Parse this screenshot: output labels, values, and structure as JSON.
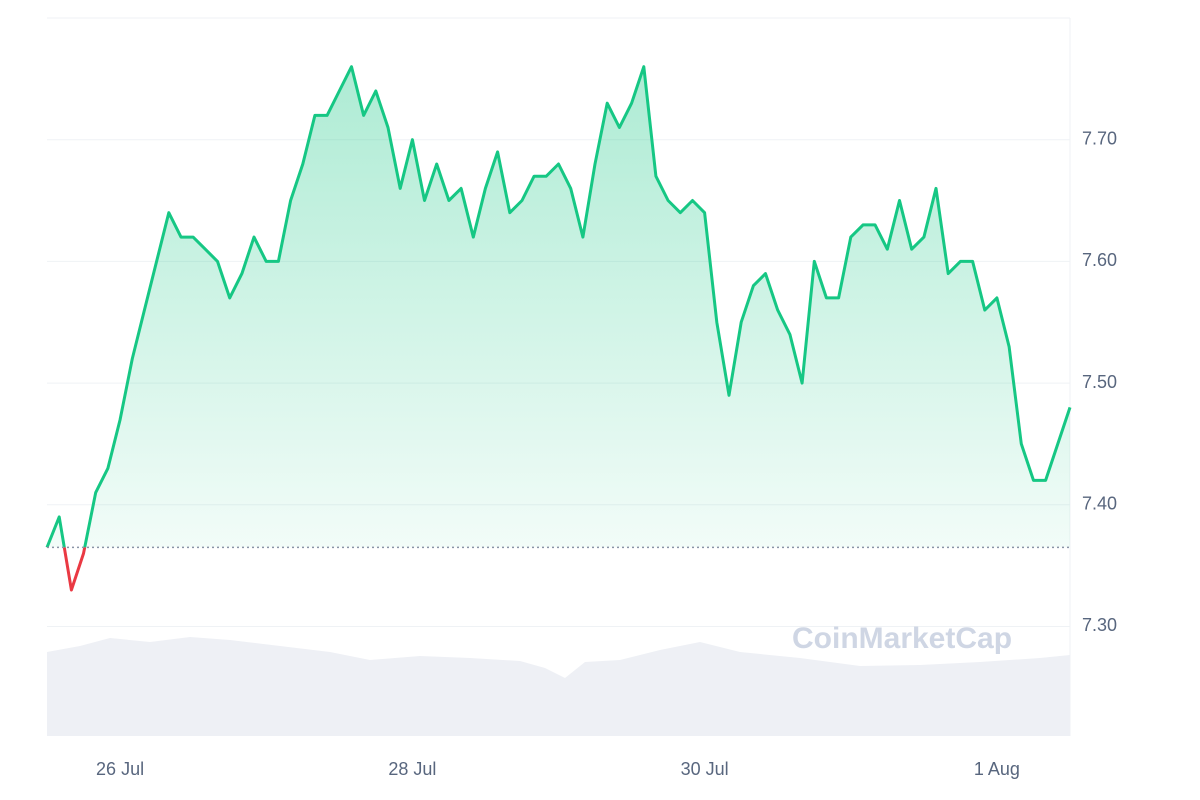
{
  "chart_data": {
    "type": "line",
    "watermark": "CoinMarketCap",
    "categories": [
      null,
      null,
      null,
      null,
      null,
      null,
      "26 Jul",
      null,
      null,
      null,
      null,
      null,
      null,
      null,
      null,
      null,
      null,
      null,
      null,
      null,
      null,
      null,
      null,
      null,
      null,
      null,
      null,
      null,
      null,
      null,
      "28 Jul",
      null,
      null,
      null,
      null,
      null,
      null,
      null,
      null,
      null,
      null,
      null,
      null,
      null,
      null,
      null,
      null,
      null,
      null,
      null,
      null,
      null,
      null,
      null,
      "30 Jul",
      null,
      null,
      null,
      null,
      null,
      null,
      null,
      null,
      null,
      null,
      null,
      null,
      null,
      null,
      null,
      null,
      null,
      null,
      null,
      null,
      null,
      null,
      null,
      "1 Aug",
      null,
      null,
      null,
      null,
      null,
      null
    ],
    "series": [
      {
        "color": "#16c784",
        "down_color": "#ea3943",
        "values": [
          7.365,
          7.39,
          7.33,
          7.36,
          7.41,
          7.43,
          7.47,
          7.52,
          7.56,
          7.6,
          7.64,
          7.62,
          7.62,
          7.61,
          7.6,
          7.57,
          7.59,
          7.62,
          7.6,
          7.6,
          7.65,
          7.68,
          7.72,
          7.72,
          7.74,
          7.76,
          7.72,
          7.74,
          7.71,
          7.66,
          7.7,
          7.65,
          7.68,
          7.65,
          7.66,
          7.62,
          7.66,
          7.69,
          7.64,
          7.65,
          7.67,
          7.67,
          7.68,
          7.66,
          7.62,
          7.68,
          7.73,
          7.71,
          7.73,
          7.76,
          7.67,
          7.65,
          7.64,
          7.65,
          7.64,
          7.55,
          7.49,
          7.55,
          7.58,
          7.59,
          7.56,
          7.54,
          7.5,
          7.6,
          7.57,
          7.57,
          7.62,
          7.63,
          7.63,
          7.61,
          7.65,
          7.61,
          7.62,
          7.66,
          7.59,
          7.6,
          7.6,
          7.56,
          7.57,
          7.53,
          7.45,
          7.42,
          7.42,
          7.45,
          7.48
        ]
      }
    ],
    "baseline": 7.365,
    "ylim": [
      7.21,
      7.8
    ],
    "yticks": [
      {
        "value": 7.3,
        "label": "7.30"
      },
      {
        "value": 7.4,
        "label": "7.40"
      },
      {
        "value": 7.5,
        "label": "7.50"
      },
      {
        "value": 7.6,
        "label": "7.60"
      },
      {
        "value": 7.7,
        "label": "7.70"
      }
    ],
    "grid": true
  }
}
